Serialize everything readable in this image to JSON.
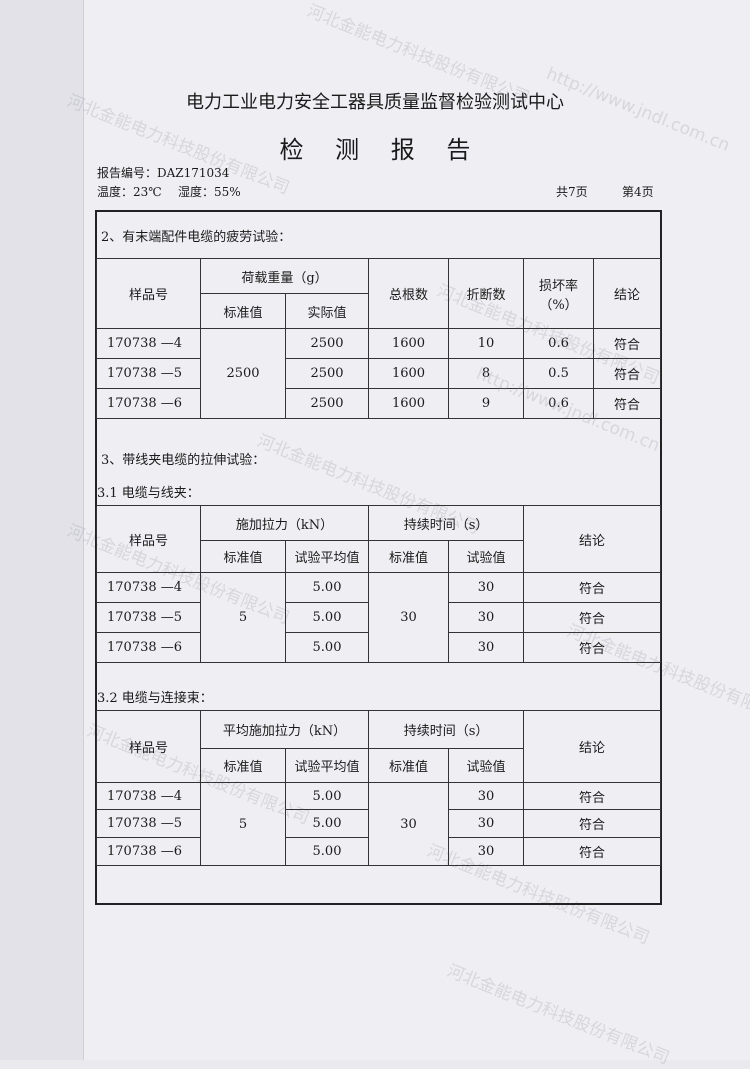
{
  "header": {
    "org": "电力工业电力安全工器具质量监督检验测试中心",
    "doc_title": "检 测 报 告",
    "report_no": "报告编号：DAZ171034",
    "temperature": "温度：23℃",
    "humidity": "湿度：55%",
    "total_pages": "共7页",
    "page": "第4页"
  },
  "section2": {
    "title": "2、有末端配件电缆的疲劳试验：",
    "headers": {
      "sample": "样品号",
      "load": "荷载重量（g）",
      "standard": "标准值",
      "actual": "实际值",
      "total": "总根数",
      "broken": "折断数",
      "rate": "损坏率（%）",
      "conclusion": "结论"
    },
    "standard_value": "2500",
    "rows": [
      {
        "sample": "170738 —4",
        "actual": "2500",
        "total": "1600",
        "broken": "10",
        "rate": "0.6",
        "conclusion": "符合"
      },
      {
        "sample": "170738 —5",
        "actual": "2500",
        "total": "1600",
        "broken": "8",
        "rate": "0.5",
        "conclusion": "符合"
      },
      {
        "sample": "170738 —6",
        "actual": "2500",
        "total": "1600",
        "broken": "9",
        "rate": "0.6",
        "conclusion": "符合"
      }
    ]
  },
  "section3": {
    "title": "3、带线夹电缆的拉伸试验：",
    "sub1": {
      "title": "3.1 电缆与线夹：",
      "headers": {
        "sample": "样品号",
        "force": "施加拉力（kN）",
        "standard": "标准值",
        "avg": "试验平均值",
        "duration": "持续时间（s）",
        "dur_standard": "标准值",
        "dur_test": "试验值",
        "conclusion": "结论"
      },
      "force_standard": "5",
      "duration_standard": "30",
      "rows": [
        {
          "sample": "170738 —4",
          "avg": "5.00",
          "test": "30",
          "conclusion": "符合"
        },
        {
          "sample": "170738 —5",
          "avg": "5.00",
          "test": "30",
          "conclusion": "符合"
        },
        {
          "sample": "170738 —6",
          "avg": "5.00",
          "test": "30",
          "conclusion": "符合"
        }
      ]
    },
    "sub2": {
      "title": "3.2 电缆与连接束：",
      "headers": {
        "sample": "样品号",
        "force": "平均施加拉力（kN）",
        "standard": "标准值",
        "avg": "试验平均值",
        "duration": "持续时间（s）",
        "dur_standard": "标准值",
        "dur_test": "试验值",
        "conclusion": "结论"
      },
      "force_standard": "5",
      "duration_standard": "30",
      "rows": [
        {
          "sample": "170738 —4",
          "avg": "5.00",
          "test": "30",
          "conclusion": "符合"
        },
        {
          "sample": "170738 —5",
          "avg": "5.00",
          "test": "30",
          "conclusion": "符合"
        },
        {
          "sample": "170738 —6",
          "avg": "5.00",
          "test": "30",
          "conclusion": "符合"
        }
      ]
    }
  },
  "watermark": {
    "company": "河北金能电力科技股份有限公司",
    "url": "http://www.jndl.com.cn"
  }
}
